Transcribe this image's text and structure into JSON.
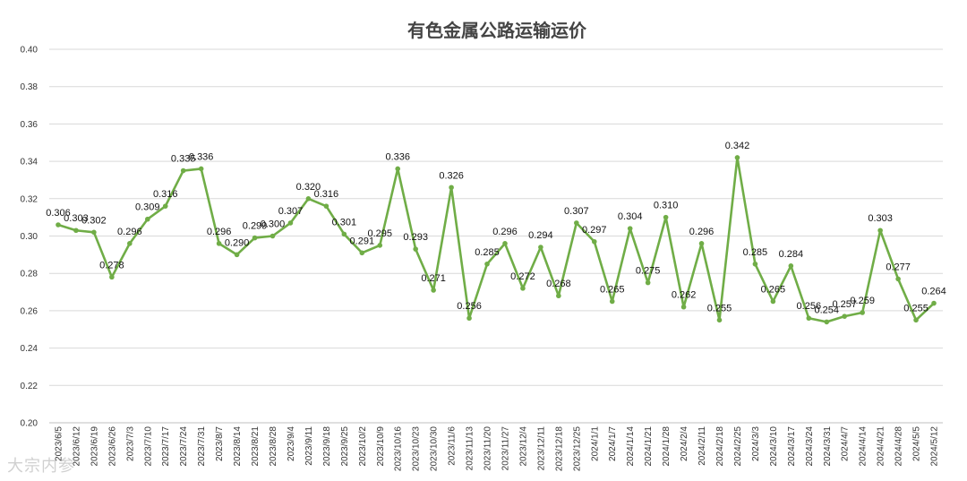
{
  "chart_data": {
    "type": "line",
    "title": "有色金属公路运输运价",
    "xlabel": "",
    "ylabel": "",
    "ylim": [
      0.2,
      0.4
    ],
    "yticks": [
      "0.20",
      "0.22",
      "0.24",
      "0.26",
      "0.28",
      "0.30",
      "0.32",
      "0.34",
      "0.36",
      "0.38",
      "0.40"
    ],
    "grid": true,
    "legend": "none",
    "line_color": "#70ad47",
    "categories": [
      "2023/6/5",
      "2023/6/12",
      "2023/6/19",
      "2023/6/26",
      "2023/7/3",
      "2023/7/10",
      "2023/7/17",
      "2023/7/24",
      "2023/7/31",
      "2023/8/7",
      "2023/8/14",
      "2023/8/21",
      "2023/8/28",
      "2023/9/4",
      "2023/9/11",
      "2023/9/18",
      "2023/9/25",
      "2023/10/2",
      "2023/10/9",
      "2023/10/16",
      "2023/10/23",
      "2023/10/30",
      "2023/11/6",
      "2023/11/13",
      "2023/11/20",
      "2023/11/27",
      "2023/12/4",
      "2023/12/11",
      "2023/12/18",
      "2023/12/25",
      "2024/1/1",
      "2024/1/7",
      "2024/1/14",
      "2024/1/21",
      "2024/1/28",
      "2024/2/4",
      "2024/2/11",
      "2024/2/18",
      "2024/2/25",
      "2024/3/3",
      "2024/3/10",
      "2024/3/17",
      "2024/3/24",
      "2024/3/31",
      "2024/4/7",
      "2024/4/14",
      "2024/4/21",
      "2024/4/28",
      "2024/5/5",
      "2024/5/12"
    ],
    "values": [
      0.306,
      0.303,
      0.302,
      0.278,
      0.296,
      0.309,
      0.316,
      0.335,
      0.336,
      0.296,
      0.29,
      0.299,
      0.3,
      0.307,
      0.32,
      0.316,
      0.301,
      0.291,
      0.295,
      0.336,
      0.293,
      0.271,
      0.326,
      0.256,
      0.285,
      0.296,
      0.272,
      0.294,
      0.268,
      0.307,
      0.297,
      0.265,
      0.304,
      0.275,
      0.31,
      0.262,
      0.296,
      0.255,
      0.342,
      0.285,
      0.265,
      0.284,
      0.256,
      0.254,
      0.257,
      0.259,
      0.303,
      0.277,
      0.255,
      0.264
    ],
    "value_labels": [
      "0.306",
      "0.303",
      "0.302",
      "0.278",
      "0.296",
      "0.309",
      "0.316",
      "0.335",
      "0.336",
      "0.296",
      "0.290",
      "0.299",
      "0.300",
      "0.307",
      "0.320",
      "0.316",
      "0.301",
      "0.291",
      "0.295",
      "0.336",
      "0.293",
      "0.271",
      "0.326",
      "0.256",
      "0.285",
      "0.296",
      "0.272",
      "0.294",
      "0.268",
      "0.307",
      "0.297",
      "0.265",
      "0.304",
      "0.275",
      "0.310",
      "0.262",
      "0.296",
      "0.255",
      "0.342",
      "0.285",
      "0.265",
      "0.284",
      "0.256",
      "0.254",
      "0.257",
      "0.259",
      "0.303",
      "0.277",
      "0.255",
      "0.264"
    ]
  },
  "watermark": "大宗内参"
}
